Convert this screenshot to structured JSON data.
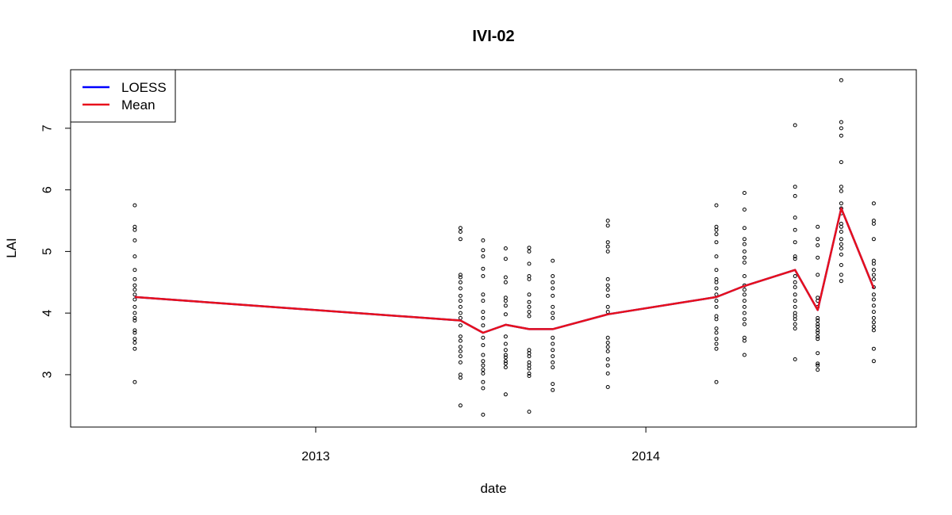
{
  "chart_data": {
    "type": "scatter",
    "title": "IVI-02",
    "xlabel": "date",
    "ylabel": "LAI",
    "x_ticks": [
      "2013",
      "2014"
    ],
    "y_ticks": [
      "3",
      "4",
      "5",
      "6",
      "7"
    ],
    "xlim": [
      "2012-04-05",
      "2014-10-27"
    ],
    "ylim": [
      2.15,
      7.95
    ],
    "grid": false,
    "legend": {
      "placement": "top-left",
      "entries": [
        {
          "name": "LOESS",
          "color": "#0000ff"
        },
        {
          "name": "Mean",
          "color": "#e8111b"
        }
      ]
    },
    "series": [
      {
        "name": "LOESS",
        "type": "line",
        "color": "#0000ff",
        "points": [
          [
            "2012-06-15",
            4.26
          ],
          [
            "2013-06-10",
            3.88
          ],
          [
            "2013-07-05",
            3.68
          ],
          [
            "2013-07-30",
            3.81
          ],
          [
            "2013-08-25",
            3.74
          ],
          [
            "2013-09-20",
            3.74
          ],
          [
            "2013-11-20",
            3.98
          ],
          [
            "2014-03-20",
            4.26
          ],
          [
            "2014-04-20",
            4.44
          ],
          [
            "2014-06-15",
            4.7
          ],
          [
            "2014-07-10",
            4.05
          ],
          [
            "2014-08-05",
            5.7
          ],
          [
            "2014-09-10",
            4.4
          ]
        ]
      },
      {
        "name": "Mean",
        "type": "line",
        "color": "#e8111b",
        "points": [
          [
            "2012-06-15",
            4.26
          ],
          [
            "2013-06-10",
            3.88
          ],
          [
            "2013-07-05",
            3.68
          ],
          [
            "2013-07-30",
            3.81
          ],
          [
            "2013-08-25",
            3.74
          ],
          [
            "2013-09-20",
            3.74
          ],
          [
            "2013-11-20",
            3.98
          ],
          [
            "2014-03-20",
            4.26
          ],
          [
            "2014-04-20",
            4.44
          ],
          [
            "2014-06-15",
            4.7
          ],
          [
            "2014-07-10",
            4.05
          ],
          [
            "2014-08-05",
            5.7
          ],
          [
            "2014-09-10",
            4.4
          ]
        ]
      },
      {
        "name": "observations",
        "type": "scatter",
        "color": "#000000",
        "groups": [
          {
            "date": "2012-06-15",
            "values": [
              5.75,
              5.4,
              5.35,
              5.18,
              4.92,
              4.7,
              4.55,
              4.45,
              4.38,
              4.3,
              4.22,
              4.1,
              4.0,
              3.92,
              3.88,
              3.72,
              3.68,
              3.58,
              3.52,
              3.42,
              2.88
            ]
          },
          {
            "date": "2013-06-10",
            "values": [
              5.38,
              5.32,
              5.2,
              4.62,
              4.58,
              4.5,
              4.4,
              4.28,
              4.2,
              4.1,
              4.0,
              3.92,
              3.8,
              3.62,
              3.55,
              3.45,
              3.38,
              3.3,
              3.2,
              3.0,
              2.95,
              2.5
            ]
          },
          {
            "date": "2013-07-05",
            "values": [
              5.18,
              5.02,
              4.92,
              4.72,
              4.6,
              4.3,
              4.2,
              4.02,
              3.92,
              3.8,
              3.6,
              3.48,
              3.32,
              3.22,
              3.15,
              3.08,
              3.02,
              2.88,
              2.78,
              2.35
            ]
          },
          {
            "date": "2013-07-30",
            "values": [
              5.05,
              4.88,
              4.58,
              4.5,
              4.25,
              4.2,
              4.12,
              3.98,
              3.62,
              3.5,
              3.4,
              3.32,
              3.28,
              3.22,
              3.18,
              3.12,
              2.68
            ]
          },
          {
            "date": "2013-08-25",
            "values": [
              5.06,
              5.0,
              4.8,
              4.6,
              4.55,
              4.3,
              4.18,
              4.1,
              4.02,
              3.95,
              3.4,
              3.35,
              3.3,
              3.2,
              3.15,
              3.1,
              3.02,
              2.98,
              2.4
            ]
          },
          {
            "date": "2013-09-20",
            "values": [
              4.85,
              4.6,
              4.5,
              4.4,
              4.28,
              4.1,
              4.0,
              3.92,
              3.6,
              3.5,
              3.4,
              3.3,
              3.2,
              3.12,
              2.85,
              2.75
            ]
          },
          {
            "date": "2013-11-20",
            "values": [
              5.5,
              5.42,
              5.15,
              5.08,
              5.0,
              4.55,
              4.45,
              4.38,
              4.28,
              4.1,
              4.02,
              3.6,
              3.52,
              3.45,
              3.38,
              3.25,
              3.15,
              3.02,
              2.8
            ]
          },
          {
            "date": "2014-03-20",
            "values": [
              5.75,
              5.4,
              5.35,
              5.28,
              5.15,
              4.92,
              4.7,
              4.55,
              4.5,
              4.4,
              4.3,
              4.2,
              4.1,
              3.95,
              3.9,
              3.75,
              3.68,
              3.58,
              3.5,
              3.42,
              2.88
            ]
          },
          {
            "date": "2014-04-20",
            "values": [
              5.95,
              5.68,
              5.38,
              5.2,
              5.12,
              5.0,
              4.9,
              4.82,
              4.6,
              4.45,
              4.38,
              4.3,
              4.2,
              4.1,
              4.0,
              3.9,
              3.82,
              3.6,
              3.55,
              3.32
            ]
          },
          {
            "date": "2014-06-15",
            "values": [
              7.05,
              6.05,
              5.9,
              5.55,
              5.35,
              5.15,
              4.92,
              4.88,
              4.6,
              4.5,
              4.42,
              4.3,
              4.2,
              4.1,
              4.0,
              3.95,
              3.9,
              3.82,
              3.75,
              3.25
            ]
          },
          {
            "date": "2014-07-10",
            "values": [
              5.4,
              5.2,
              5.1,
              4.9,
              4.62,
              4.25,
              4.2,
              4.1,
              3.92,
              3.88,
              3.82,
              3.78,
              3.72,
              3.68,
              3.62,
              3.58,
              3.35,
              3.18,
              3.15,
              3.08
            ]
          },
          {
            "date": "2014-08-05",
            "values": [
              7.78,
              7.1,
              7.0,
              6.88,
              6.45,
              6.05,
              5.98,
              5.78,
              5.7,
              5.62,
              5.45,
              5.4,
              5.32,
              5.2,
              5.12,
              5.05,
              4.95,
              4.78,
              4.62,
              4.52
            ]
          },
          {
            "date": "2014-09-10",
            "values": [
              5.78,
              5.5,
              5.45,
              5.2,
              4.85,
              4.8,
              4.7,
              4.62,
              4.55,
              4.42,
              4.3,
              4.22,
              4.12,
              4.02,
              3.92,
              3.85,
              3.78,
              3.72,
              3.42,
              3.22
            ]
          }
        ]
      }
    ]
  }
}
